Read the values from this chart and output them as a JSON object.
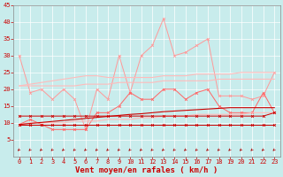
{
  "x": [
    0,
    1,
    2,
    3,
    4,
    5,
    6,
    7,
    8,
    9,
    10,
    11,
    12,
    13,
    14,
    15,
    16,
    17,
    18,
    19,
    20,
    21,
    22,
    23
  ],
  "lines": [
    {
      "name": "rafales_max",
      "color": "#FF9999",
      "lw": 0.7,
      "marker": "x",
      "ms": 2.0,
      "mew": 0.6,
      "values": [
        30,
        19,
        20,
        17,
        20,
        17,
        8,
        20,
        17,
        30,
        19,
        30,
        33,
        41,
        30,
        31,
        33,
        35,
        18,
        18,
        18,
        17,
        18,
        25
      ]
    },
    {
      "name": "rafales_trend_upper",
      "color": "#FFBBBB",
      "lw": 0.8,
      "marker": null,
      "ms": 0,
      "mew": 0,
      "values": [
        21,
        21.5,
        22,
        22.5,
        23,
        23.5,
        24,
        24.0,
        23.5,
        23.5,
        23.5,
        23.5,
        23.5,
        24.0,
        24,
        24,
        24.5,
        24.5,
        24.5,
        24.5,
        25,
        25,
        25,
        25
      ]
    },
    {
      "name": "moyen_points",
      "color": "#FF6666",
      "lw": 0.7,
      "marker": "x",
      "ms": 2.0,
      "mew": 0.6,
      "values": [
        9.5,
        11,
        9.5,
        8,
        8,
        8,
        8,
        13,
        13,
        15,
        19,
        17,
        17,
        20,
        20,
        17,
        19,
        20,
        15,
        13,
        13,
        13,
        19,
        13
      ]
    },
    {
      "name": "moyen_trend_upper",
      "color": "#FFBBBB",
      "lw": 0.8,
      "marker": null,
      "ms": 0,
      "mew": 0,
      "values": [
        21,
        21,
        21,
        21,
        21,
        21,
        21.5,
        21.5,
        21.5,
        22,
        22,
        22,
        22,
        22.5,
        22.5,
        22.5,
        22.5,
        22.5,
        23,
        23,
        23,
        23,
        23,
        23
      ]
    },
    {
      "name": "moyen_trend_lower",
      "color": "#FFBBBB",
      "lw": 0.8,
      "marker": null,
      "ms": 0,
      "mew": 0,
      "values": [
        9.5,
        10,
        10,
        10,
        10,
        10.5,
        10.5,
        10.5,
        11,
        11,
        11,
        11.5,
        11.5,
        12,
        12,
        12,
        12.5,
        12.5,
        12.5,
        12.5,
        12.5,
        13,
        13,
        13
      ]
    },
    {
      "name": "line_flat_low",
      "color": "#CC0000",
      "lw": 0.7,
      "marker": "x",
      "ms": 2.0,
      "mew": 0.6,
      "values": [
        9.5,
        9.5,
        9.5,
        9.5,
        9.5,
        9.5,
        9.5,
        9.5,
        9.5,
        9.5,
        9.5,
        9.5,
        9.5,
        9.5,
        9.5,
        9.5,
        9.5,
        9.5,
        9.5,
        9.5,
        9.5,
        9.5,
        9.5,
        9.5
      ]
    },
    {
      "name": "line_flat_mid",
      "color": "#CC0000",
      "lw": 0.7,
      "marker": "x",
      "ms": 2.0,
      "mew": 0.6,
      "values": [
        12,
        12,
        12,
        12,
        12,
        12,
        12,
        12,
        12,
        12,
        12,
        12,
        12,
        12,
        12,
        12,
        12,
        12,
        12,
        12,
        12,
        12,
        12,
        13
      ]
    },
    {
      "name": "line_trend_red",
      "color": "#CC0000",
      "lw": 0.8,
      "marker": null,
      "ms": 0,
      "mew": 0,
      "values": [
        9.5,
        9.8,
        10.1,
        10.4,
        10.7,
        11.0,
        11.3,
        11.6,
        11.9,
        12.2,
        12.5,
        12.7,
        13.0,
        13.3,
        13.5,
        13.7,
        13.9,
        14.1,
        14.3,
        14.5,
        14.5,
        14.5,
        14.5,
        14.5
      ]
    }
  ],
  "wind_symbol_y": 2.0,
  "xlabel": "Vent moyen/en rafales ( km/h )",
  "xlim": [
    -0.5,
    23.5
  ],
  "ylim": [
    0,
    45
  ],
  "yticks": [
    5,
    10,
    15,
    20,
    25,
    30,
    35,
    40,
    45
  ],
  "xticks": [
    0,
    1,
    2,
    3,
    4,
    5,
    6,
    7,
    8,
    9,
    10,
    11,
    12,
    13,
    14,
    15,
    16,
    17,
    18,
    19,
    20,
    21,
    22,
    23
  ],
  "bg_color": "#C8ECEC",
  "grid_color": "#FFFFFF",
  "xlabel_color": "#CC0000",
  "xlabel_fontsize": 6.5,
  "tick_color": "#CC0000",
  "tick_fontsize": 5.0,
  "fig_width": 3.2,
  "fig_height": 2.0,
  "dpi": 100
}
